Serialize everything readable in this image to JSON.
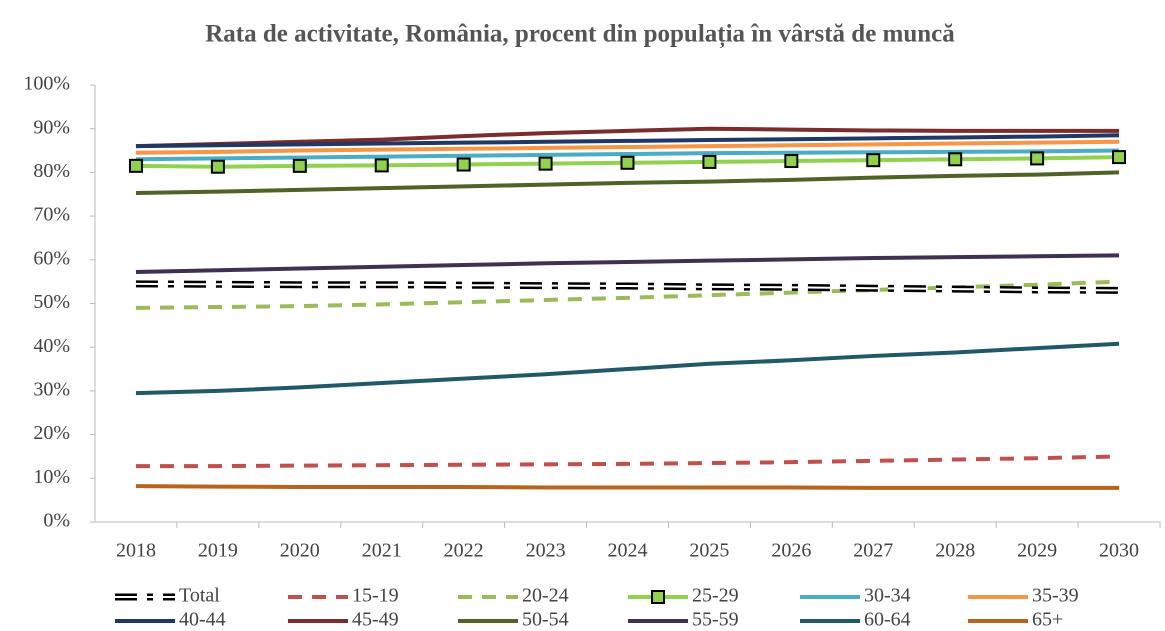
{
  "chart_data": {
    "type": "line",
    "title": "Rata de activitate, România, procent din populația în vârstă de muncă",
    "categories": [
      "2018",
      "2019",
      "2020",
      "2021",
      "2022",
      "2023",
      "2024",
      "2025",
      "2026",
      "2027",
      "2028",
      "2029",
      "2030"
    ],
    "ylim": [
      0,
      100
    ],
    "yticks": [
      {
        "value": 0,
        "label": "0%"
      },
      {
        "value": 10,
        "label": "10%"
      },
      {
        "value": 20,
        "label": "20%"
      },
      {
        "value": 30,
        "label": "30%"
      },
      {
        "value": 40,
        "label": "40%"
      },
      {
        "value": 50,
        "label": "50%"
      },
      {
        "value": 60,
        "label": "60%"
      },
      {
        "value": 70,
        "label": "70%"
      },
      {
        "value": 80,
        "label": "80%"
      },
      {
        "value": 90,
        "label": "90%"
      },
      {
        "value": 100,
        "label": "100%"
      }
    ],
    "grid": false,
    "legend": "bottom",
    "series": [
      {
        "name": "Total",
        "color": "#000000",
        "style": "double-dash",
        "values": [
          54.5,
          54.4,
          54.3,
          54.3,
          54.2,
          54.1,
          54.0,
          53.8,
          53.7,
          53.5,
          53.3,
          53.1,
          53.0
        ]
      },
      {
        "name": "15-19",
        "color": "#c0504d",
        "style": "dash",
        "values": [
          12.8,
          12.8,
          12.9,
          13.0,
          13.1,
          13.2,
          13.3,
          13.5,
          13.7,
          14.0,
          14.3,
          14.6,
          15.0
        ]
      },
      {
        "name": "20-24",
        "color": "#9bbb59",
        "style": "dash",
        "values": [
          49.0,
          49.2,
          49.4,
          49.8,
          50.3,
          50.8,
          51.3,
          51.9,
          52.5,
          53.1,
          53.7,
          54.3,
          55.0
        ]
      },
      {
        "name": "25-29",
        "color": "#92d050",
        "style": "solid",
        "marker": "square",
        "values": [
          81.5,
          81.3,
          81.5,
          81.6,
          81.8,
          82.0,
          82.2,
          82.4,
          82.6,
          82.8,
          83.0,
          83.2,
          83.5
        ]
      },
      {
        "name": "30-34",
        "color": "#4bacc6",
        "style": "solid",
        "values": [
          83.0,
          83.2,
          83.4,
          83.6,
          83.8,
          84.0,
          84.2,
          84.4,
          84.5,
          84.6,
          84.7,
          84.8,
          85.0
        ]
      },
      {
        "name": "35-39",
        "color": "#f79646",
        "style": "solid",
        "values": [
          84.5,
          84.7,
          85.0,
          85.2,
          85.4,
          85.6,
          85.8,
          86.0,
          86.2,
          86.4,
          86.6,
          86.8,
          87.0
        ]
      },
      {
        "name": "40-44",
        "color": "#1f3864",
        "style": "solid",
        "values": [
          86.0,
          86.2,
          86.4,
          86.6,
          86.8,
          87.0,
          87.2,
          87.4,
          87.6,
          87.8,
          88.0,
          88.2,
          88.5
        ]
      },
      {
        "name": "45-49",
        "color": "#7b2c2c",
        "style": "solid",
        "values": [
          86.0,
          86.5,
          87.0,
          87.5,
          88.3,
          89.0,
          89.5,
          90.0,
          89.8,
          89.6,
          89.5,
          89.5,
          89.5
        ]
      },
      {
        "name": "50-54",
        "color": "#4f6228",
        "style": "solid",
        "values": [
          75.3,
          75.6,
          76.0,
          76.4,
          76.8,
          77.2,
          77.6,
          77.9,
          78.3,
          78.8,
          79.2,
          79.5,
          80.0
        ]
      },
      {
        "name": "55-59",
        "color": "#403152",
        "style": "solid",
        "values": [
          57.2,
          57.6,
          58.0,
          58.4,
          58.8,
          59.2,
          59.5,
          59.8,
          60.1,
          60.4,
          60.6,
          60.8,
          61.0
        ]
      },
      {
        "name": "60-64",
        "color": "#215968",
        "style": "solid",
        "values": [
          29.5,
          30.0,
          30.8,
          31.8,
          32.8,
          33.8,
          35.0,
          36.2,
          37.0,
          38.0,
          38.8,
          39.8,
          40.8
        ]
      },
      {
        "name": "65+",
        "color": "#b8631e",
        "style": "solid",
        "values": [
          8.2,
          8.1,
          8.0,
          8.0,
          8.0,
          7.9,
          7.9,
          7.9,
          7.9,
          7.8,
          7.8,
          7.8,
          7.8
        ]
      }
    ]
  }
}
